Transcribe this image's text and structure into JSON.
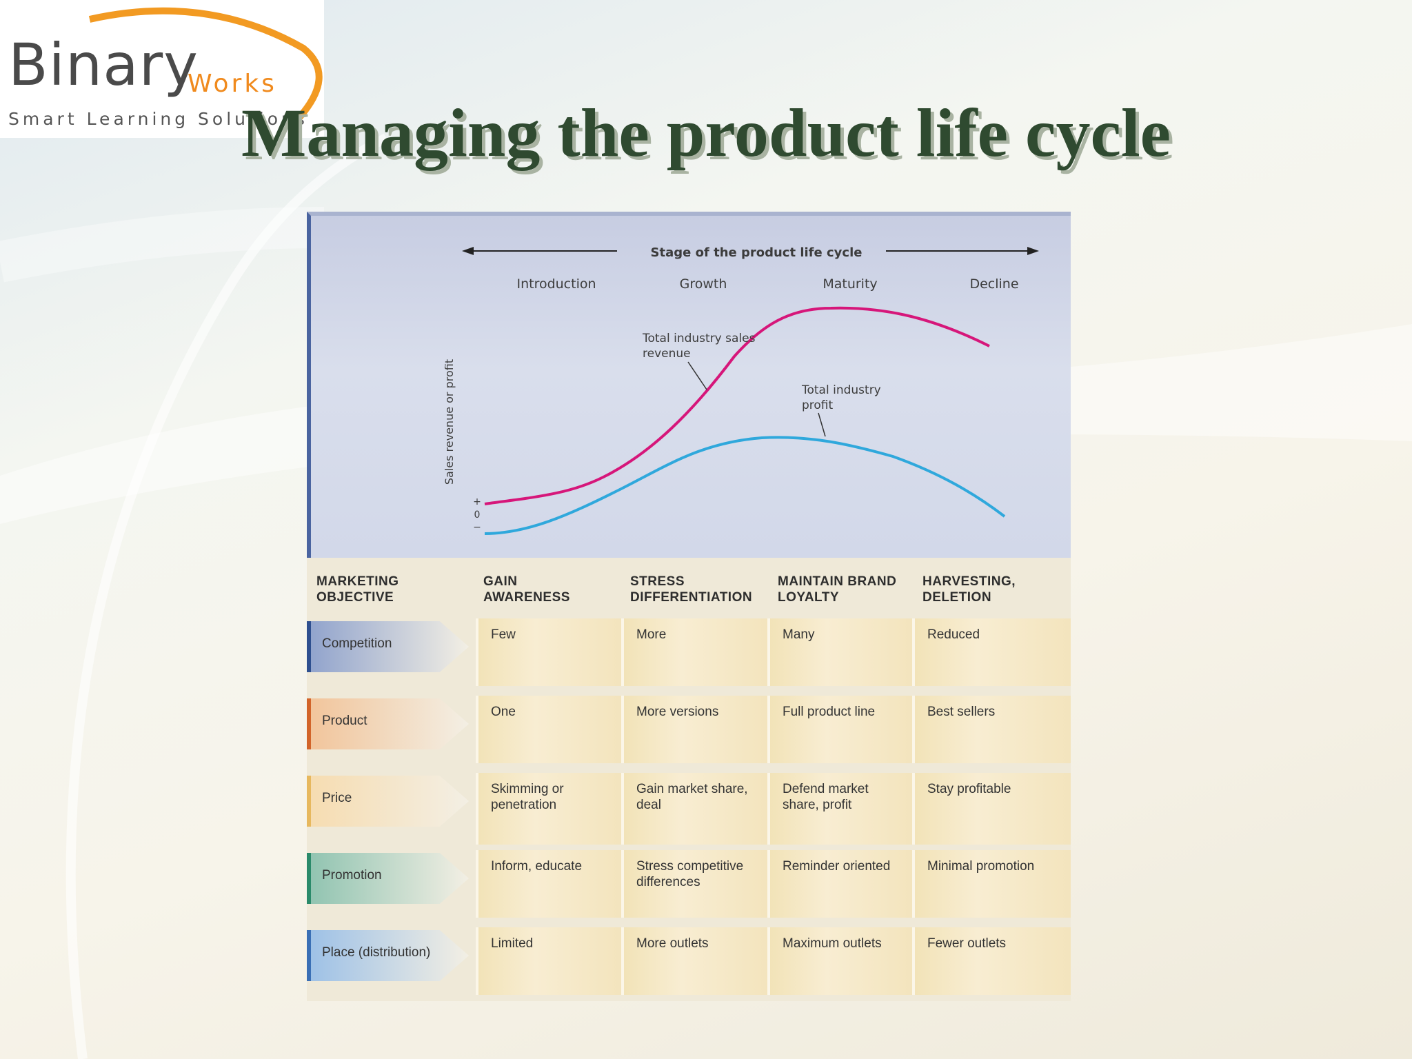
{
  "logo": {
    "word": "Binary",
    "accent": "Works",
    "tagline": "Smart Learning Solutions",
    "accent_color": "#f08a1d"
  },
  "slide": {
    "title": "Managing the product life cycle"
  },
  "chart_data": {
    "type": "line",
    "title": "Stage of the product life cycle",
    "stages": [
      "Introduction",
      "Growth",
      "Maturity",
      "Decline"
    ],
    "ylabel": "Sales revenue or profit",
    "y_marks": [
      "+",
      "0",
      "−"
    ],
    "series": [
      {
        "name": "Total industry sales revenue",
        "color": "#d6167a"
      },
      {
        "name": "Total industry profit",
        "color": "#2fa8dc"
      }
    ]
  },
  "table": {
    "header_label": "MARKETING OBJECTIVE",
    "objectives": [
      "GAIN AWARENESS",
      "STRESS DIFFERENTIATION",
      "MAINTAIN BRAND LOYALTY",
      "HARVESTING, DELETION"
    ],
    "rows": [
      {
        "label": "Competition",
        "color": "#8fa2cc",
        "bar": "#2e4f8f",
        "cells": [
          "Few",
          "More",
          "Many",
          "Reduced"
        ]
      },
      {
        "label": "Product",
        "color": "#f2c49a",
        "bar": "#d2642a",
        "cells": [
          "One",
          "More versions",
          "Full product line",
          "Best sellers"
        ]
      },
      {
        "label": "Price",
        "color": "#f6dcb0",
        "bar": "#e7b85e",
        "cells": [
          "Skimming or penetration",
          "Gain market share, deal",
          "Defend market share, profit",
          "Stay profitable"
        ]
      },
      {
        "label": "Promotion",
        "color": "#8fc3b0",
        "bar": "#2a8a6a",
        "cells": [
          "Inform, educate",
          "Stress competitive differences",
          "Reminder oriented",
          "Minimal promotion"
        ]
      },
      {
        "label": "Place (distribution)",
        "color": "#9cc0e6",
        "bar": "#3a6fb5",
        "cells": [
          "Limited",
          "More outlets",
          "Maximum outlets",
          "Fewer outlets"
        ]
      }
    ]
  }
}
